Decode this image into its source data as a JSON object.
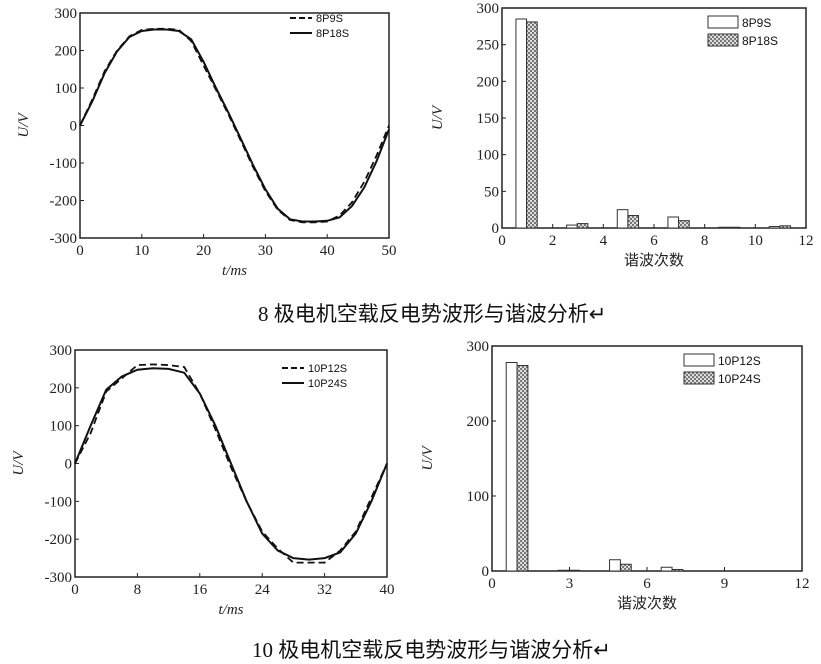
{
  "chart_data": [
    {
      "type": "line",
      "ylabel": "U/V",
      "xlabel": "t/ms",
      "xlim": [
        0,
        50
      ],
      "ylim": [
        -300,
        300
      ],
      "xticks": [
        0,
        10,
        20,
        30,
        40,
        50
      ],
      "yticks": [
        -300,
        -200,
        -100,
        0,
        100,
        200,
        300
      ],
      "series": [
        {
          "name": "8P9S",
          "style": "dashed",
          "x": [
            0,
            2,
            4,
            6,
            8,
            10,
            12,
            14,
            16,
            18,
            20,
            22,
            24,
            26,
            28,
            30,
            32,
            34,
            36,
            38,
            40,
            42,
            44,
            46,
            48,
            50
          ],
          "y": [
            0,
            70,
            145,
            200,
            238,
            255,
            258,
            258,
            255,
            225,
            160,
            95,
            30,
            -40,
            -110,
            -175,
            -225,
            -252,
            -258,
            -258,
            -256,
            -240,
            -205,
            -150,
            -80,
            0
          ]
        },
        {
          "name": "8P18S",
          "style": "solid",
          "x": [
            0,
            2,
            4,
            6,
            8,
            10,
            12,
            14,
            16,
            18,
            20,
            22,
            24,
            26,
            28,
            30,
            32,
            34,
            36,
            38,
            40,
            42,
            44,
            46,
            48,
            50
          ],
          "y": [
            0,
            65,
            140,
            198,
            236,
            252,
            256,
            256,
            252,
            230,
            170,
            100,
            35,
            -35,
            -105,
            -170,
            -222,
            -250,
            -256,
            -256,
            -254,
            -245,
            -215,
            -165,
            -95,
            -10
          ]
        }
      ]
    },
    {
      "type": "bar",
      "ylabel": "U/V",
      "xlabel": "谐波次数",
      "xlim": [
        0,
        12
      ],
      "ylim": [
        0,
        300
      ],
      "xticks": [
        0,
        2,
        4,
        6,
        8,
        10,
        12
      ],
      "yticks": [
        0,
        50,
        100,
        150,
        200,
        250,
        300
      ],
      "categories": [
        1,
        3,
        5,
        7,
        9,
        11
      ],
      "series": [
        {
          "name": "8P9S",
          "values": [
            285,
            4,
            25,
            15,
            1,
            2
          ]
        },
        {
          "name": "8P18S",
          "values": [
            281,
            6,
            17,
            10,
            1,
            3
          ]
        }
      ]
    },
    {
      "type": "line",
      "ylabel": "U/V",
      "xlabel": "t/ms",
      "xlim": [
        0,
        40
      ],
      "ylim": [
        -300,
        300
      ],
      "xticks": [
        0,
        8,
        16,
        24,
        32,
        40
      ],
      "yticks": [
        -300,
        -200,
        -100,
        0,
        100,
        200,
        300
      ],
      "series": [
        {
          "name": "10P12S",
          "style": "dashed",
          "x": [
            0,
            2,
            4,
            6,
            8,
            10,
            12,
            14,
            16,
            18,
            20,
            22,
            24,
            26,
            28,
            30,
            32,
            34,
            36,
            38,
            40
          ],
          "y": [
            0,
            80,
            190,
            225,
            260,
            262,
            260,
            255,
            185,
            90,
            -10,
            -100,
            -180,
            -225,
            -262,
            -262,
            -262,
            -230,
            -180,
            -90,
            0
          ]
        },
        {
          "name": "10P24S",
          "style": "solid",
          "x": [
            0,
            2,
            4,
            6,
            8,
            10,
            12,
            14,
            16,
            18,
            20,
            22,
            24,
            26,
            28,
            30,
            32,
            34,
            36,
            38,
            40
          ],
          "y": [
            0,
            100,
            195,
            230,
            248,
            252,
            250,
            240,
            185,
            100,
            0,
            -100,
            -185,
            -230,
            -250,
            -254,
            -250,
            -235,
            -185,
            -100,
            0
          ]
        }
      ]
    },
    {
      "type": "bar",
      "ylabel": "U/V",
      "xlabel": "谐波次数",
      "xlim": [
        0,
        12
      ],
      "ylim": [
        0,
        300
      ],
      "xticks": [
        0,
        3,
        6,
        9,
        12
      ],
      "yticks": [
        0,
        100,
        200,
        300
      ],
      "categories": [
        1,
        3,
        5,
        7
      ],
      "series": [
        {
          "name": "10P12S",
          "values": [
            278,
            1,
            15,
            5
          ]
        },
        {
          "name": "10P24S",
          "values": [
            274,
            1,
            9,
            2
          ]
        }
      ]
    }
  ],
  "captions": [
    "8 极电机空载反电势波形与谐波分析↵",
    "10 极电机空载反电势波形与谐波分析↵"
  ]
}
